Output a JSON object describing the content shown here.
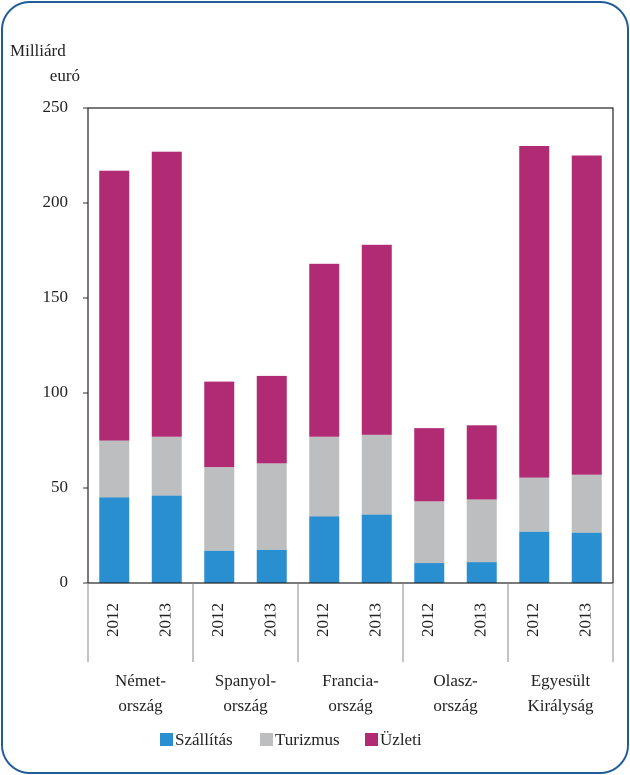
{
  "chart_data": {
    "type": "stacked-bar",
    "y_label": [
      "Milliárd",
      "euró"
    ],
    "categories": [
      "2012",
      "2013",
      "2012",
      "2013",
      "2012",
      "2013",
      "2012",
      "2013",
      "2012",
      "2013"
    ],
    "groups": [
      [
        "Német-",
        "ország"
      ],
      [
        "Spanyol-",
        "ország"
      ],
      [
        "Francia-",
        "ország"
      ],
      [
        "Olasz-",
        "ország"
      ],
      [
        "Egyesült",
        "Királyság"
      ]
    ],
    "series": [
      {
        "name": "Szállítás",
        "color": "#2a8fd0",
        "values": [
          45,
          46,
          17,
          17.5,
          35,
          36,
          10.5,
          11,
          27,
          26.5
        ]
      },
      {
        "name": "Turizmus",
        "color": "#bcbec0",
        "values": [
          30,
          31,
          44,
          45.5,
          42,
          42,
          32.5,
          33,
          28.5,
          30.5
        ]
      },
      {
        "name": "Üzleti",
        "color": "#b02a74",
        "values": [
          142,
          150,
          45,
          46,
          91,
          100,
          38.5,
          39,
          174.5,
          168
        ]
      }
    ],
    "ylim": [
      0,
      250
    ],
    "yticks": [
      0,
      50,
      100,
      150,
      200,
      250
    ],
    "legend": "bottom"
  }
}
